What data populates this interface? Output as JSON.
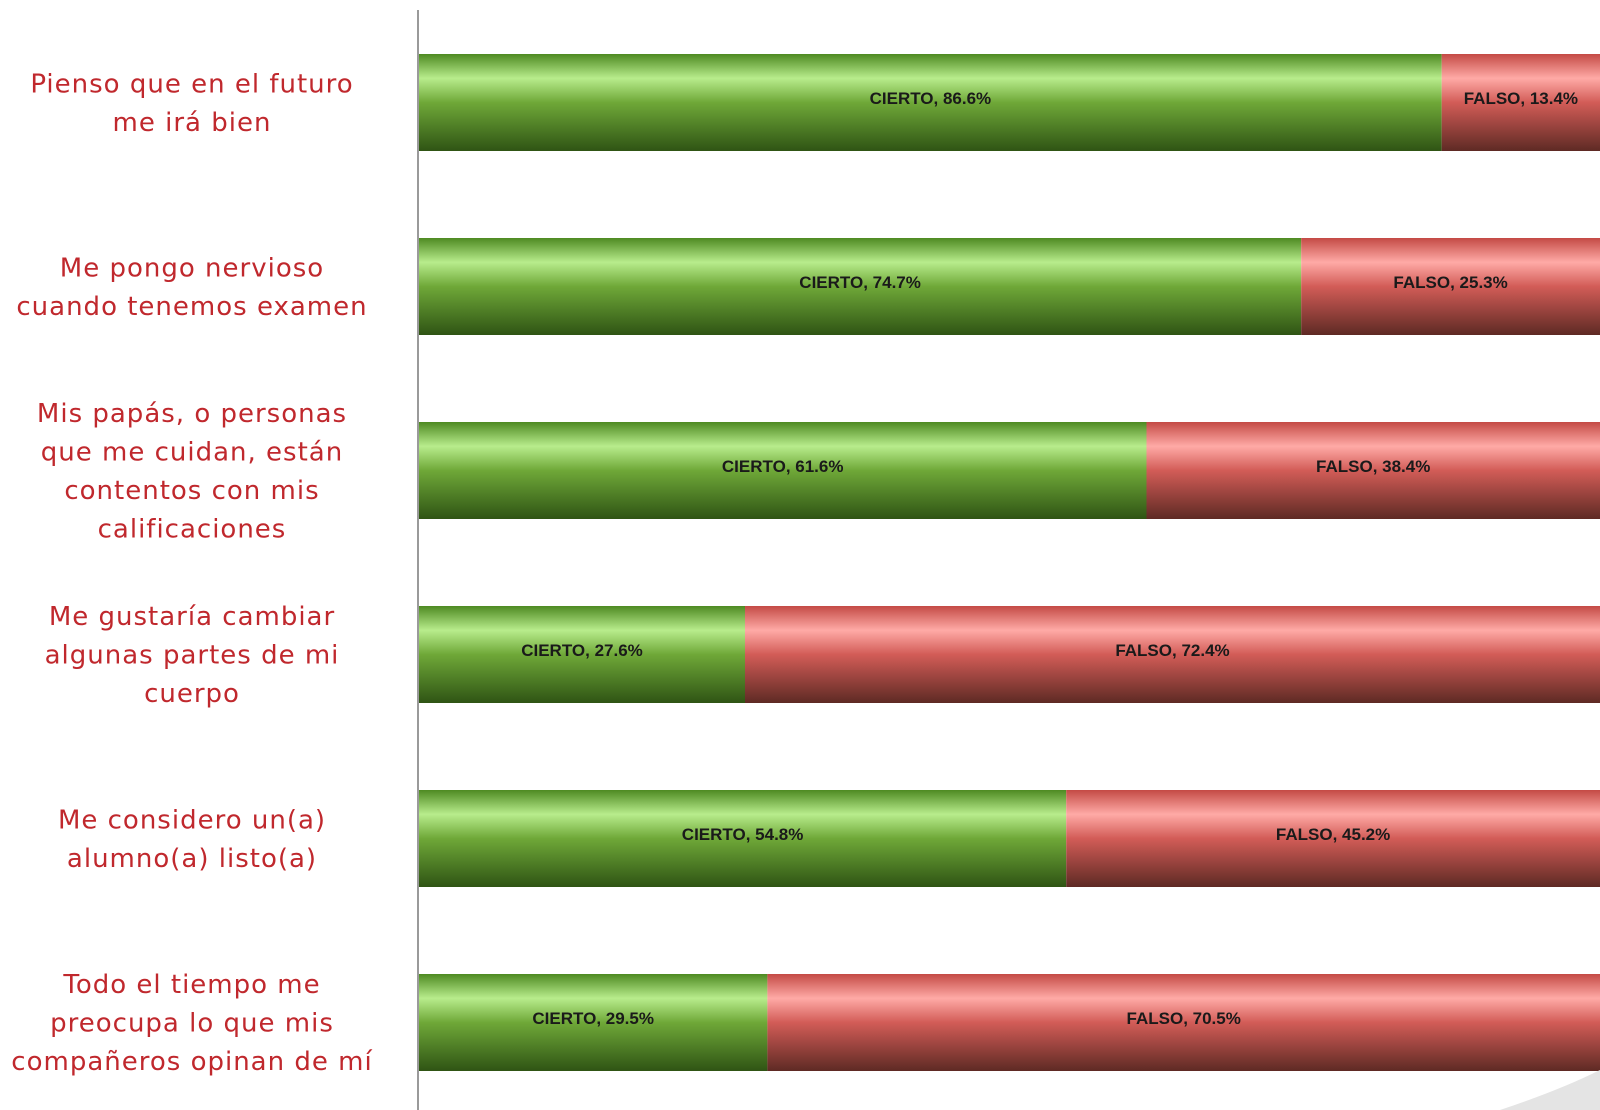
{
  "chart_data": {
    "type": "bar",
    "orientation": "horizontal",
    "stacked": true,
    "categories": [
      "Pienso que en el futuro me irá bien",
      "Me pongo nervioso cuando tenemos examen",
      "Mis papás, o personas que me cuidan, están contentos con mis calificaciones",
      "Me gustaría cambiar algunas partes de mi cuerpo",
      "Me considero un(a) alumno(a) listo(a)",
      "Todo el tiempo me preocupa lo que mis compañeros opinan de mí"
    ],
    "category_lines": [
      [
        "Pienso que en el futuro",
        "me irá bien"
      ],
      [
        "Me pongo nervioso",
        "cuando tenemos examen"
      ],
      [
        "Mis papás, o personas",
        "que me cuidan, están",
        "contentos con mis",
        "calificaciones"
      ],
      [
        "Me gustaría cambiar",
        "algunas partes de mi",
        "cuerpo"
      ],
      [
        "Me considero un(a)",
        "alumno(a) listo(a)"
      ],
      [
        "Todo el tiempo me",
        "preocupa lo que mis",
        "compañeros opinan de mí"
      ]
    ],
    "series": [
      {
        "name": "CIERTO",
        "values": [
          86.6,
          74.7,
          61.6,
          27.6,
          54.8,
          29.5
        ],
        "color": "#5a9a2a"
      },
      {
        "name": "FALSO",
        "values": [
          13.4,
          25.3,
          38.4,
          72.4,
          45.2,
          70.5
        ],
        "color": "#d05a55"
      }
    ],
    "data_labels": [
      [
        "CIERTO, 86.6%",
        "FALSO, 13.4%"
      ],
      [
        "CIERTO, 74.7%",
        "FALSO, 25.3%"
      ],
      [
        "CIERTO, 61.6%",
        "FALSO, 38.4%"
      ],
      [
        "CIERTO, 27.6%",
        "FALSO, 72.4%"
      ],
      [
        "CIERTO, 54.8%",
        "FALSO, 45.2%"
      ],
      [
        "CIERTO, 29.5%",
        "FALSO, 70.5%"
      ]
    ],
    "xlim": [
      0,
      100
    ],
    "legend": "none",
    "grid": false,
    "label_color": "#c0282d"
  }
}
